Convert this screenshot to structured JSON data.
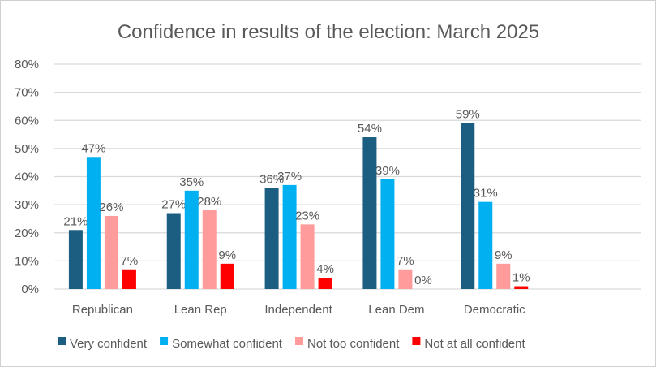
{
  "chart_data": {
    "type": "bar",
    "title": "Confidence in results of the election: March 2025",
    "xlabel": "",
    "ylabel": "",
    "ylim": [
      0,
      80
    ],
    "yticks": [
      "0%",
      "10%",
      "20%",
      "30%",
      "40%",
      "50%",
      "60%",
      "70%",
      "80%"
    ],
    "grid": true,
    "legend_position": "bottom",
    "categories": [
      "Republican",
      "Lean Rep",
      "Independent",
      "Lean Dem",
      "Democratic"
    ],
    "series": [
      {
        "name": "Very confident",
        "color": "#1b5e82",
        "values": [
          21,
          27,
          36,
          54,
          59
        ],
        "labels": [
          "21%",
          "27%",
          "36%",
          "54%",
          "59%"
        ]
      },
      {
        "name": "Somewhat confident",
        "color": "#00b0f0",
        "values": [
          47,
          35,
          37,
          39,
          31
        ],
        "labels": [
          "47%",
          "35%",
          "37%",
          "39%",
          "31%"
        ]
      },
      {
        "name": "Not too confident",
        "color": "#ff9b9b",
        "values": [
          26,
          28,
          23,
          7,
          9
        ],
        "labels": [
          "26%",
          "28%",
          "23%",
          "7%",
          "9%"
        ]
      },
      {
        "name": "Not at all confident",
        "color": "#ff0000",
        "values": [
          7,
          9,
          4,
          0,
          1
        ],
        "labels": [
          "7%",
          "9%",
          "4%",
          "0%",
          "1%"
        ]
      }
    ]
  }
}
